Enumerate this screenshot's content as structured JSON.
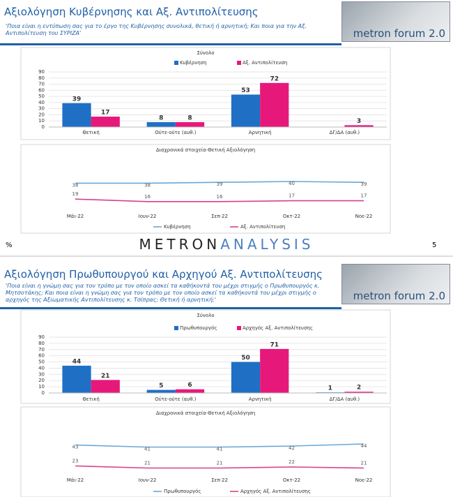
{
  "slides": [
    {
      "title": "Αξιολόγηση Κυβέρνησης και Αξ. Αντιπολίτευσης",
      "subtitle": "'Ποια είναι η εντύπωση σας για το έργο της Κυβέρνησης συνολικά, θετική ή αρνητική; Και ποια για την Αξ. Αντιπολίτευση του ΣΥΡΙΖΑ'",
      "logo": "metron forum 2.0"
    },
    {
      "title": "Αξιολόγηση Πρωθυπουργού και Αρχηγού Αξ. Αντιπολίτευσης",
      "subtitle": "'Ποια είναι η γνώμη σας για τον τρόπο με τον οποίο ασκεί τα καθήκοντά του μέχρι στιγμής ο Πρωθυπουργός κ. Μητσοτάκης; Και ποια είναι η γνώμη σας για τον τρόπο με τον οποίο ασκεί τα καθήκοντά του μέχρι στιγμής ο αρχηγός της Αξιωματικής Αντιπολίτευσης κ. Τσίπρας; Θετική ή αρνητική;'",
      "logo": "metron forum 2.0"
    }
  ],
  "footer": {
    "left": "%",
    "brand1": "METRON",
    "brand2": "ANALYSIS",
    "page": "5"
  },
  "chart_data": [
    {
      "type": "bar",
      "title": "Σύνολο",
      "categories": [
        "Θετική",
        "Ούτε-ούτε (αυθ.)",
        "Αρνητική",
        "ΔΓ/ΔΑ (αυθ.)"
      ],
      "series": [
        {
          "name": "Κυβέρνηση",
          "color": "#1f6fc5",
          "values": [
            39,
            8,
            53,
            null
          ]
        },
        {
          "name": "Αξ. Αντιπολίτευση",
          "color": "#e6197b",
          "values": [
            17,
            8,
            72,
            3
          ]
        }
      ],
      "ylim": [
        0,
        90
      ],
      "yticks": [
        0,
        10,
        20,
        30,
        40,
        50,
        60,
        70,
        80,
        90
      ]
    },
    {
      "type": "line",
      "title": "Διαχρονικά στοιχεία-Θετική Αξιολόγηση",
      "categories": [
        "Μάι-22",
        "Ιουν-22",
        "Σεπ-22",
        "Οκτ-22",
        "Νοε-22"
      ],
      "series": [
        {
          "name": "Κυβέρνηση",
          "color": "#6aa7d8",
          "values": [
            38,
            38,
            39,
            40,
            39
          ]
        },
        {
          "name": "Αξ. Αντιπολίτευση",
          "color": "#d6428b",
          "values": [
            19,
            16,
            16,
            17,
            17
          ]
        }
      ],
      "ylim": [
        0,
        50
      ]
    },
    {
      "type": "bar",
      "title": "Σύνολο",
      "categories": [
        "Θετική",
        "Ούτε-ούτε (αυθ.)",
        "Αρνητική",
        "ΔΓ/ΔΑ (αυθ.)"
      ],
      "series": [
        {
          "name": "Πρωθυπουργός",
          "color": "#1f6fc5",
          "values": [
            44,
            5,
            50,
            1
          ]
        },
        {
          "name": "Αρχηγός Αξ. Αντιπολίτευσης",
          "color": "#e6197b",
          "values": [
            21,
            6,
            71,
            2
          ]
        }
      ],
      "ylim": [
        0,
        90
      ],
      "yticks": [
        0,
        10,
        20,
        30,
        40,
        50,
        60,
        70,
        80,
        90
      ]
    },
    {
      "type": "line",
      "title": "Διαχρονικά στοιχεία-Θετική Αξιολόγηση",
      "categories": [
        "Μάι-22",
        "Ιουν-22",
        "Σεπ-22",
        "Οκτ-22",
        "Νοε-22"
      ],
      "series": [
        {
          "name": "Πρωθυπουργός",
          "color": "#6aa7d8",
          "values": [
            43,
            41,
            41,
            42,
            44
          ]
        },
        {
          "name": "Αρχηγός Αξ. Αντιπολίτευσης",
          "color": "#d6428b",
          "values": [
            23,
            21,
            21,
            22,
            21
          ]
        }
      ],
      "ylim": [
        0,
        50
      ]
    }
  ]
}
